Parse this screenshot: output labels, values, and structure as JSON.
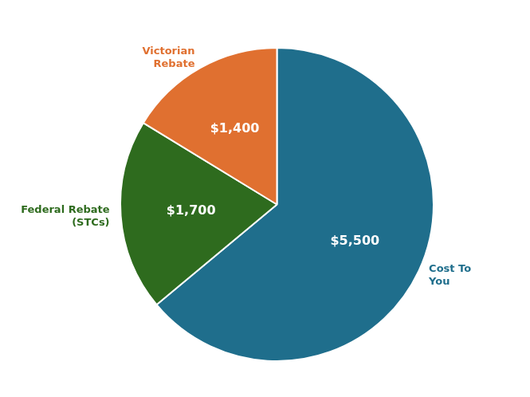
{
  "chart_data": {
    "type": "pie",
    "categories": [
      "Cost To\nYou",
      "Federal Rebate\n(STCs)",
      "Victorian\nRebate"
    ],
    "values": [
      5500,
      1700,
      1400
    ],
    "value_labels": [
      "$5,500",
      "$1,700",
      "$1,400"
    ],
    "colors": [
      "#1f6e8c",
      "#2e6b1e",
      "#e07030"
    ],
    "data_labels": true
  }
}
